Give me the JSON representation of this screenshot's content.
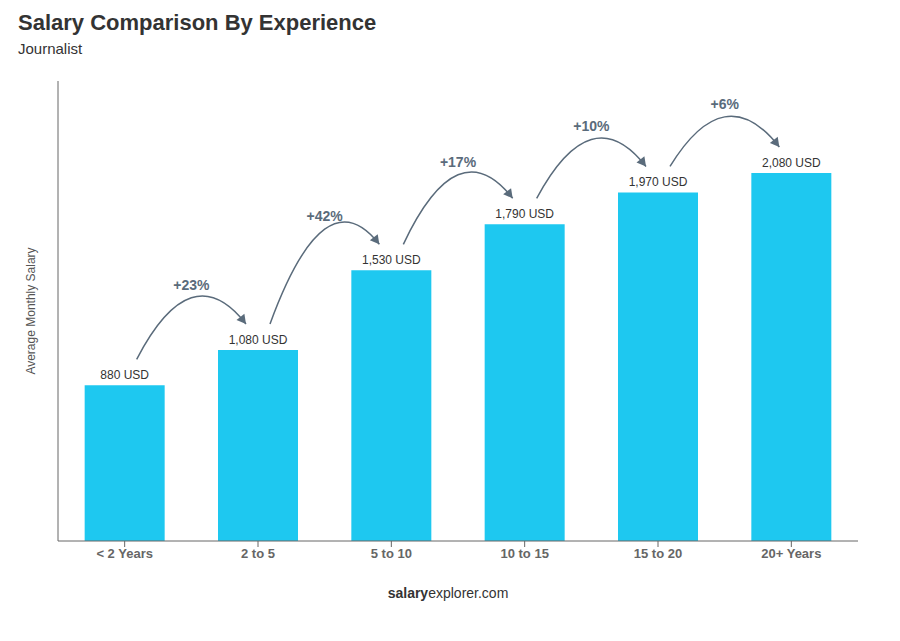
{
  "chart_data": {
    "type": "bar",
    "title": "Salary Comparison By Experience",
    "subtitle": "Journalist",
    "categories": [
      "< 2 Years",
      "2 to 5",
      "5 to 10",
      "10 to 15",
      "15 to 20",
      "20+ Years"
    ],
    "values": [
      880,
      1080,
      1530,
      1790,
      1970,
      2080
    ],
    "value_labels": [
      "880 USD",
      "1,080 USD",
      "1,530 USD",
      "1,790 USD",
      "1,970 USD",
      "2,080 USD"
    ],
    "data_labels": true,
    "annotations": [
      "+23%",
      "+42%",
      "+17%",
      "+10%",
      "+6%"
    ],
    "ylabel": "Average Monthly Salary",
    "watermark": [
      "salary",
      "explorer.com"
    ],
    "color": "#1ec8f0",
    "ylim": [
      0,
      2600
    ],
    "grid": false,
    "tick_labels": "x"
  }
}
